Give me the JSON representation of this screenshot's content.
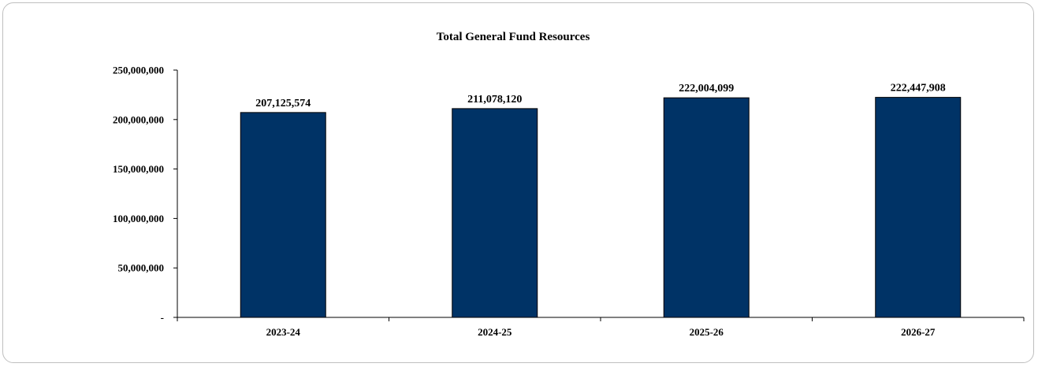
{
  "chart_data": {
    "type": "bar",
    "title": "Total General Fund Resources",
    "xlabel": "",
    "ylabel": "",
    "categories": [
      "2023-24",
      "2024-25",
      "2025-26",
      "2026-27"
    ],
    "values": [
      207125574,
      211078120,
      222004099,
      222447908
    ],
    "data_labels": [
      "207,125,574",
      "211,078,120",
      "222,004,099",
      "222,447,908"
    ],
    "ylim": [
      0,
      250000000
    ],
    "yticks": [
      0,
      50000000,
      100000000,
      150000000,
      200000000,
      250000000
    ],
    "ytick_labels": [
      "-",
      "50,000,000",
      "100,000,000",
      "150,000,000",
      "200,000,000",
      "250,000,000"
    ],
    "bar_color": "#003366",
    "grid": false,
    "legend": "none"
  }
}
